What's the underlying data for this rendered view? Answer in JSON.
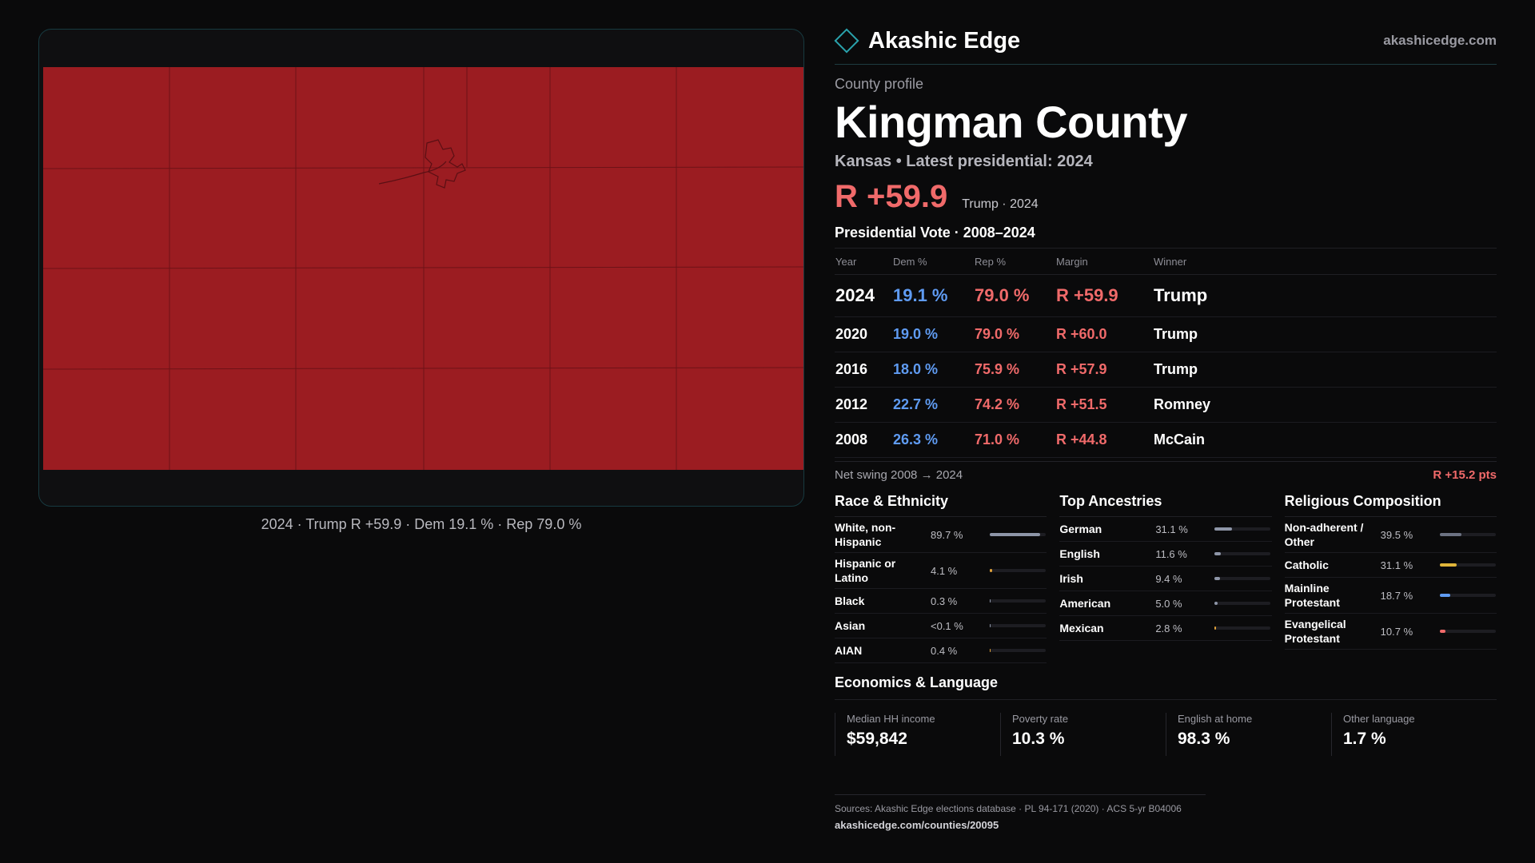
{
  "map": {
    "caption": "2024 · Trump R +59.9 · Dem 19.1 % · Rep 79.0 %",
    "fill_color": "#9b1c21"
  },
  "header": {
    "brand": "Akashic Edge",
    "logo_icon": "diamond-icon",
    "site_url": "akashicedge.com"
  },
  "county": {
    "eyebrow": "County profile",
    "name": "Kingman County",
    "subtitle": "Kansas • Latest presidential: 2024",
    "headline_margin": "R +59.9",
    "headline_note": "Trump · 2024"
  },
  "votes": {
    "title": "Presidential Vote · 2008–2024",
    "headers": [
      "Year",
      "Dem %",
      "Rep %",
      "Margin",
      "Winner"
    ],
    "rows": [
      {
        "year": "2024",
        "dem": "19.1 %",
        "rep": "79.0 %",
        "margin": "R +59.9",
        "winner": "Trump"
      },
      {
        "year": "2020",
        "dem": "19.0 %",
        "rep": "79.0 %",
        "margin": "R +60.0",
        "winner": "Trump"
      },
      {
        "year": "2016",
        "dem": "18.0 %",
        "rep": "75.9 %",
        "margin": "R +57.9",
        "winner": "Trump"
      },
      {
        "year": "2012",
        "dem": "22.7 %",
        "rep": "74.2 %",
        "margin": "R +51.5",
        "winner": "Romney"
      },
      {
        "year": "2008",
        "dem": "26.3 %",
        "rep": "71.0 %",
        "margin": "R +44.8",
        "winner": "McCain"
      }
    ],
    "swing_label": "Net swing 2008 → 2024",
    "swing_value": "R +15.2 pts"
  },
  "race": {
    "title": "Race & Ethnicity",
    "rows": [
      {
        "label": "White, non-Hispanic",
        "value": "89.7 %",
        "pct": 89.7,
        "color": "#8e96a8"
      },
      {
        "label": "Hispanic or Latino",
        "value": "4.1 %",
        "pct": 4.1,
        "color": "#e0a23a"
      },
      {
        "label": "Black",
        "value": "0.3 %",
        "pct": 0.3,
        "color": "#8e96a8"
      },
      {
        "label": "Asian",
        "value": "<0.1 %",
        "pct": 0.05,
        "color": "#8e96a8"
      },
      {
        "label": "AIAN",
        "value": "0.4 %",
        "pct": 0.4,
        "color": "#e0a23a"
      }
    ]
  },
  "ancestry": {
    "title": "Top Ancestries",
    "rows": [
      {
        "label": "German",
        "value": "31.1 %",
        "pct": 31.1,
        "color": "#8e96a8"
      },
      {
        "label": "English",
        "value": "11.6 %",
        "pct": 11.6,
        "color": "#8e96a8"
      },
      {
        "label": "Irish",
        "value": "9.4 %",
        "pct": 9.4,
        "color": "#8e96a8"
      },
      {
        "label": "American",
        "value": "5.0 %",
        "pct": 5.0,
        "color": "#8e96a8"
      },
      {
        "label": "Mexican",
        "value": "2.8 %",
        "pct": 2.8,
        "color": "#e0a23a"
      }
    ]
  },
  "religion": {
    "title": "Religious Composition",
    "rows": [
      {
        "label": "Non-adherent / Other",
        "value": "39.5 %",
        "pct": 39.5,
        "color": "#6c7282"
      },
      {
        "label": "Catholic",
        "value": "31.1 %",
        "pct": 31.1,
        "color": "#e0b53a"
      },
      {
        "label": "Mainline Protestant",
        "value": "18.7 %",
        "pct": 18.7,
        "color": "#5f9bf2"
      },
      {
        "label": "Evangelical Protestant",
        "value": "10.7 %",
        "pct": 10.7,
        "color": "#f06a6a"
      }
    ]
  },
  "economics": {
    "title": "Economics & Language",
    "items": [
      {
        "label": "Median HH income",
        "value": "$59,842"
      },
      {
        "label": "Poverty rate",
        "value": "10.3 %"
      },
      {
        "label": "English at home",
        "value": "98.3 %"
      },
      {
        "label": "Other language",
        "value": "1.7 %"
      }
    ]
  },
  "footer": {
    "sources": "Sources: Akashic Edge elections database · PL 94-171 (2020) · ACS 5-yr B04006",
    "url": "akashicedge.com/counties/20095"
  }
}
